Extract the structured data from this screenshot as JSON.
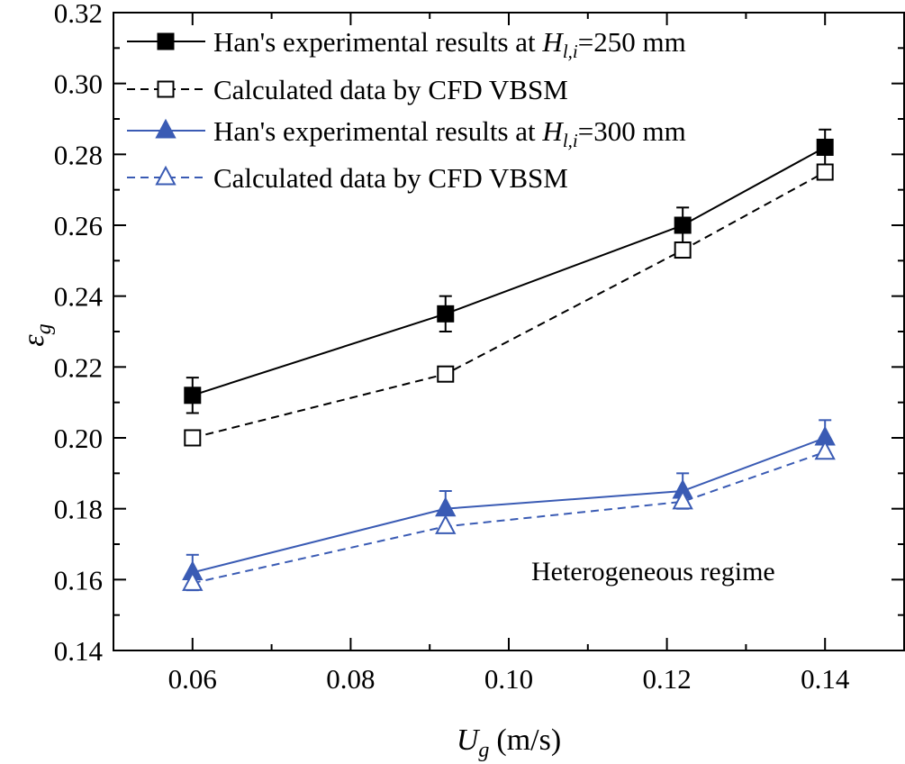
{
  "colors": {
    "black": "#000000",
    "blue": "#3a5bb4"
  },
  "chart_data": {
    "type": "line",
    "xlabel_main": "U",
    "xlabel_sub": "g",
    "xlabel_unit": "(m/s)",
    "ylabel_main": "ε",
    "ylabel_sub": "g",
    "xlim": [
      0.05,
      0.15
    ],
    "ylim": [
      0.14,
      0.32
    ],
    "xticks": [
      "0.06",
      "0.08",
      "0.10",
      "0.12",
      "0.14"
    ],
    "yticks": [
      "0.14",
      "0.16",
      "0.18",
      "0.20",
      "0.22",
      "0.24",
      "0.26",
      "0.28",
      "0.30",
      "0.32"
    ],
    "x": [
      0.06,
      0.092,
      0.122,
      0.14
    ],
    "legend_position": "top-left",
    "annotation": "Heterogeneous regime",
    "series": [
      {
        "name": "Han's experimental results at H_l,i=250 mm",
        "legend_prefix": "Han's experimental results at ",
        "legend_var": "H",
        "legend_sub": "l,i",
        "legend_suffix": "=250 mm",
        "marker": "square-filled",
        "line": "solid",
        "color": "#000000",
        "values": [
          0.212,
          0.235,
          0.26,
          0.282
        ],
        "error": [
          0.005,
          0.005,
          0.005,
          0.005
        ]
      },
      {
        "name": "Calculated data by CFD VBSM",
        "legend_prefix": "Calculated data by CFD VBSM",
        "marker": "square-open",
        "line": "dashed",
        "color": "#000000",
        "values": [
          0.2,
          0.218,
          0.253,
          0.275
        ]
      },
      {
        "name": "Han's experimental results at H_l,i=300 mm",
        "legend_prefix": "Han's experimental results at ",
        "legend_var": "H",
        "legend_sub": "l,i",
        "legend_suffix": "=300 mm",
        "marker": "triangle-filled",
        "line": "solid",
        "color": "#3a5bb4",
        "values": [
          0.162,
          0.18,
          0.185,
          0.2
        ],
        "error": [
          0.005,
          0.005,
          0.005,
          0.005
        ]
      },
      {
        "name": "Calculated data by CFD VBSM",
        "legend_prefix": "Calculated data by CFD VBSM",
        "marker": "triangle-open",
        "line": "dashed",
        "color": "#3a5bb4",
        "values": [
          0.159,
          0.175,
          0.182,
          0.196
        ]
      }
    ]
  }
}
